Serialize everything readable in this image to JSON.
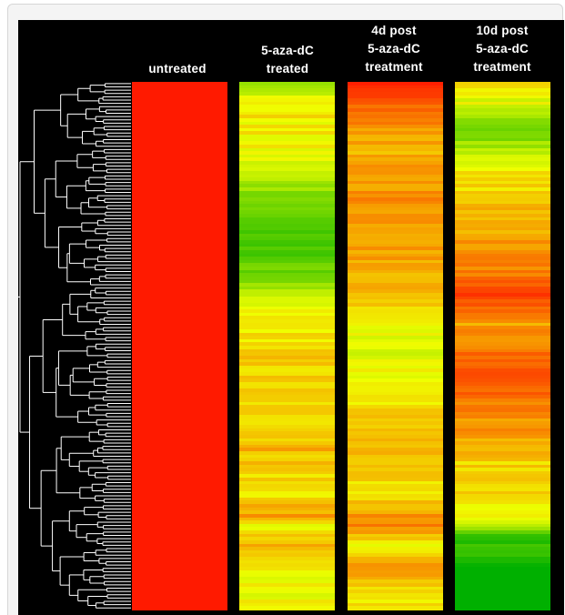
{
  "chart_data": {
    "type": "heatmap",
    "title": "",
    "columns": [
      {
        "label_lines": [
          "",
          "untreated",
          ""
        ]
      },
      {
        "label_lines": [
          "",
          "5-aza-dC",
          "treated"
        ]
      },
      {
        "label_lines": [
          "4d post",
          "5-aza-dC",
          "treatment"
        ]
      },
      {
        "label_lines": [
          "10d post",
          "5-aza-dC",
          "treatment"
        ]
      }
    ],
    "row_count": 160,
    "color_scale": {
      "low": "#00b000",
      "mid": "#f0ff00",
      "high": "#ff1a00"
    },
    "value_range": [
      0,
      1
    ],
    "column_profiles": [
      [
        [
          0,
          1,
          0
        ]
      ],
      [
        [
          0,
          0.38,
          0.08
        ],
        [
          0.05,
          0.55,
          0.08
        ],
        [
          0.14,
          0.48,
          0.08
        ],
        [
          0.23,
          0.25,
          0.06
        ],
        [
          0.3,
          0.12,
          0.05
        ],
        [
          0.37,
          0.25,
          0.05
        ],
        [
          0.44,
          0.52,
          0.06
        ],
        [
          0.52,
          0.6,
          0.07
        ],
        [
          0.62,
          0.58,
          0.06
        ],
        [
          0.7,
          0.66,
          0.08
        ],
        [
          0.78,
          0.55,
          0.08
        ],
        [
          0.82,
          0.72,
          0.08
        ],
        [
          0.84,
          0.5,
          0.08
        ],
        [
          0.88,
          0.64,
          0.07
        ],
        [
          0.93,
          0.52,
          0.07
        ],
        [
          1.0,
          0.5,
          0.06
        ]
      ],
      [
        [
          0,
          0.95,
          0.04
        ],
        [
          0.05,
          0.82,
          0.05
        ],
        [
          0.12,
          0.66,
          0.06
        ],
        [
          0.22,
          0.75,
          0.06
        ],
        [
          0.3,
          0.72,
          0.06
        ],
        [
          0.4,
          0.66,
          0.05
        ],
        [
          0.5,
          0.45,
          0.06
        ],
        [
          0.6,
          0.55,
          0.06
        ],
        [
          0.66,
          0.65,
          0.06
        ],
        [
          0.72,
          0.62,
          0.06
        ],
        [
          0.78,
          0.55,
          0.06
        ],
        [
          0.84,
          0.8,
          0.06
        ],
        [
          0.88,
          0.5,
          0.05
        ],
        [
          0.92,
          0.72,
          0.06
        ],
        [
          0.96,
          0.6,
          0.06
        ],
        [
          1.0,
          0.55,
          0.05
        ]
      ],
      [
        [
          0,
          0.55,
          0.08
        ],
        [
          0.05,
          0.45,
          0.08
        ],
        [
          0.09,
          0.2,
          0.06
        ],
        [
          0.14,
          0.48,
          0.07
        ],
        [
          0.22,
          0.62,
          0.07
        ],
        [
          0.3,
          0.72,
          0.06
        ],
        [
          0.36,
          0.78,
          0.06
        ],
        [
          0.4,
          0.93,
          0.04
        ],
        [
          0.46,
          0.7,
          0.06
        ],
        [
          0.52,
          0.82,
          0.06
        ],
        [
          0.56,
          0.9,
          0.05
        ],
        [
          0.6,
          0.8,
          0.06
        ],
        [
          0.66,
          0.72,
          0.06
        ],
        [
          0.72,
          0.6,
          0.06
        ],
        [
          0.78,
          0.58,
          0.06
        ],
        [
          0.84,
          0.45,
          0.06
        ],
        [
          0.86,
          0.08,
          0.05
        ],
        [
          0.9,
          0.12,
          0.05
        ],
        [
          0.92,
          0.0,
          0.0
        ],
        [
          1.0,
          0.0,
          0.0
        ]
      ]
    ]
  }
}
